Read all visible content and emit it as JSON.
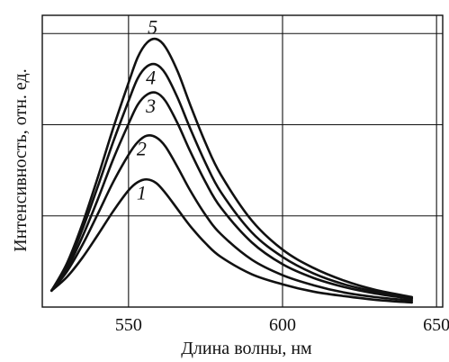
{
  "chart_data": {
    "type": "line",
    "title": "",
    "xlabel": "Длина волны, нм",
    "ylabel": "Интенсивность, отн. ед.",
    "xlim": [
      522,
      652
    ],
    "ylim": [
      0,
      3.2
    ],
    "x_ticks": [
      {
        "value": 550,
        "label": "550"
      },
      {
        "value": 600,
        "label": "600"
      },
      {
        "value": 650,
        "label": "650"
      }
    ],
    "y_gridlines": [
      1,
      2,
      3
    ],
    "grid": true,
    "legend": "none",
    "series": [
      {
        "label": "1",
        "x": [
          525,
          530,
          535,
          540,
          545,
          550,
          553,
          556,
          559,
          562,
          566,
          570,
          575,
          580,
          590,
          600,
          610,
          620,
          630,
          642
        ],
        "y": [
          0.18,
          0.33,
          0.54,
          0.79,
          1.05,
          1.28,
          1.37,
          1.4,
          1.36,
          1.25,
          1.07,
          0.89,
          0.7,
          0.55,
          0.36,
          0.25,
          0.17,
          0.12,
          0.08,
          0.05
        ]
      },
      {
        "label": "2",
        "x": [
          525,
          530,
          535,
          540,
          545,
          550,
          553,
          556,
          559,
          562,
          566,
          570,
          575,
          580,
          590,
          600,
          610,
          620,
          630,
          642
        ],
        "y": [
          0.18,
          0.39,
          0.68,
          1.02,
          1.37,
          1.67,
          1.81,
          1.88,
          1.86,
          1.76,
          1.53,
          1.28,
          1.01,
          0.8,
          0.52,
          0.35,
          0.24,
          0.16,
          0.11,
          0.07
        ]
      },
      {
        "label": "3",
        "x": [
          525,
          530,
          535,
          540,
          545,
          550,
          553,
          556,
          559,
          562,
          566,
          570,
          575,
          580,
          590,
          600,
          610,
          620,
          630,
          642
        ],
        "y": [
          0.18,
          0.42,
          0.77,
          1.18,
          1.62,
          2.01,
          2.22,
          2.33,
          2.35,
          2.26,
          2.01,
          1.71,
          1.37,
          1.09,
          0.71,
          0.47,
          0.32,
          0.22,
          0.15,
          0.09
        ]
      },
      {
        "label": "4",
        "x": [
          525,
          530,
          535,
          540,
          545,
          550,
          553,
          556,
          559,
          562,
          566,
          570,
          575,
          580,
          590,
          600,
          610,
          620,
          630,
          642
        ],
        "y": [
          0.18,
          0.45,
          0.85,
          1.32,
          1.81,
          2.26,
          2.51,
          2.64,
          2.66,
          2.56,
          2.29,
          1.96,
          1.58,
          1.26,
          0.82,
          0.55,
          0.37,
          0.25,
          0.17,
          0.1
        ]
      },
      {
        "label": "5",
        "x": [
          525,
          530,
          535,
          540,
          545,
          550,
          553,
          556,
          559,
          562,
          566,
          570,
          575,
          580,
          590,
          600,
          610,
          620,
          630,
          642
        ],
        "y": [
          0.18,
          0.48,
          0.91,
          1.42,
          1.96,
          2.46,
          2.74,
          2.9,
          2.94,
          2.85,
          2.58,
          2.22,
          1.8,
          1.45,
          0.95,
          0.63,
          0.43,
          0.29,
          0.19,
          0.11
        ]
      }
    ]
  }
}
